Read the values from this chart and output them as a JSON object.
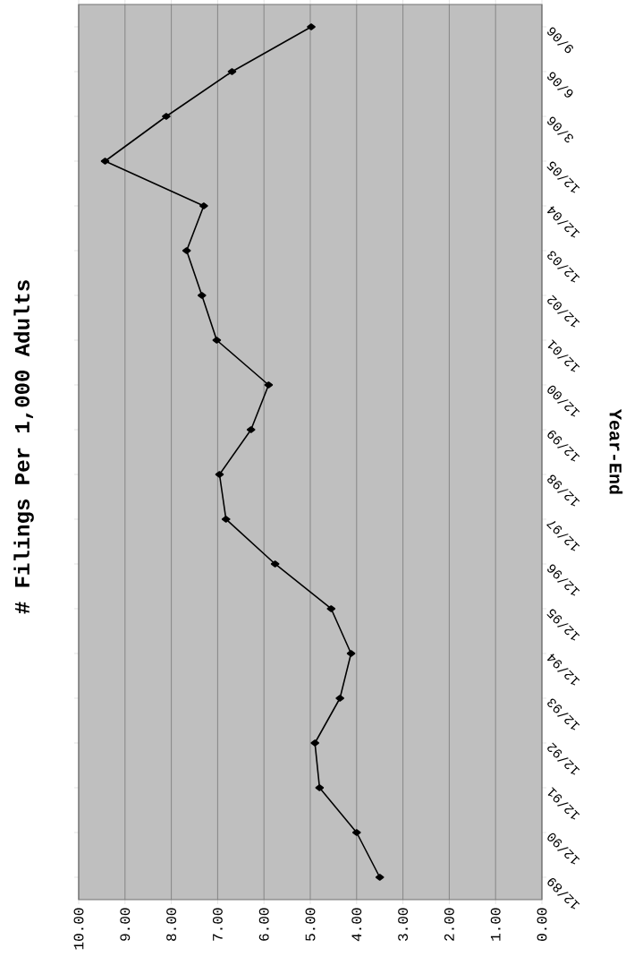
{
  "chart_data": {
    "type": "line",
    "orientation": "horizontal",
    "title": "# Filings Per 1,000 Adults",
    "ylabel": "Year-End",
    "categories": [
      "9/06",
      "6/06",
      "3/06",
      "12/05",
      "12/04",
      "12/03",
      "12/02",
      "12/01",
      "12/00",
      "12/99",
      "12/98",
      "12/97",
      "12/96",
      "12/95",
      "12/94",
      "12/93",
      "12/92",
      "12/91",
      "12/90",
      "12/89"
    ],
    "values": [
      4.98,
      6.69,
      8.11,
      9.43,
      7.3,
      7.67,
      7.34,
      7.02,
      5.9,
      6.28,
      6.96,
      6.82,
      5.76,
      4.55,
      4.12,
      4.36,
      4.9,
      4.8,
      4.0,
      3.5
    ],
    "color": "#000000",
    "marker": "diamond",
    "line_style": "solid",
    "grid": "x",
    "xlim": [
      10,
      0
    ],
    "xticks": [
      {
        "value": 10,
        "label": "10.00"
      },
      {
        "value": 9,
        "label": "9.00"
      },
      {
        "value": 8,
        "label": "8.00"
      },
      {
        "value": 7,
        "label": "7.00"
      },
      {
        "value": 6,
        "label": "6.00"
      },
      {
        "value": 5,
        "label": "5.00"
      },
      {
        "value": 4,
        "label": "4.00"
      },
      {
        "value": 3,
        "label": "3.00"
      },
      {
        "value": 2,
        "label": "2.00"
      },
      {
        "value": 1,
        "label": "1.00"
      },
      {
        "value": 0,
        "label": "0.00"
      }
    ]
  }
}
